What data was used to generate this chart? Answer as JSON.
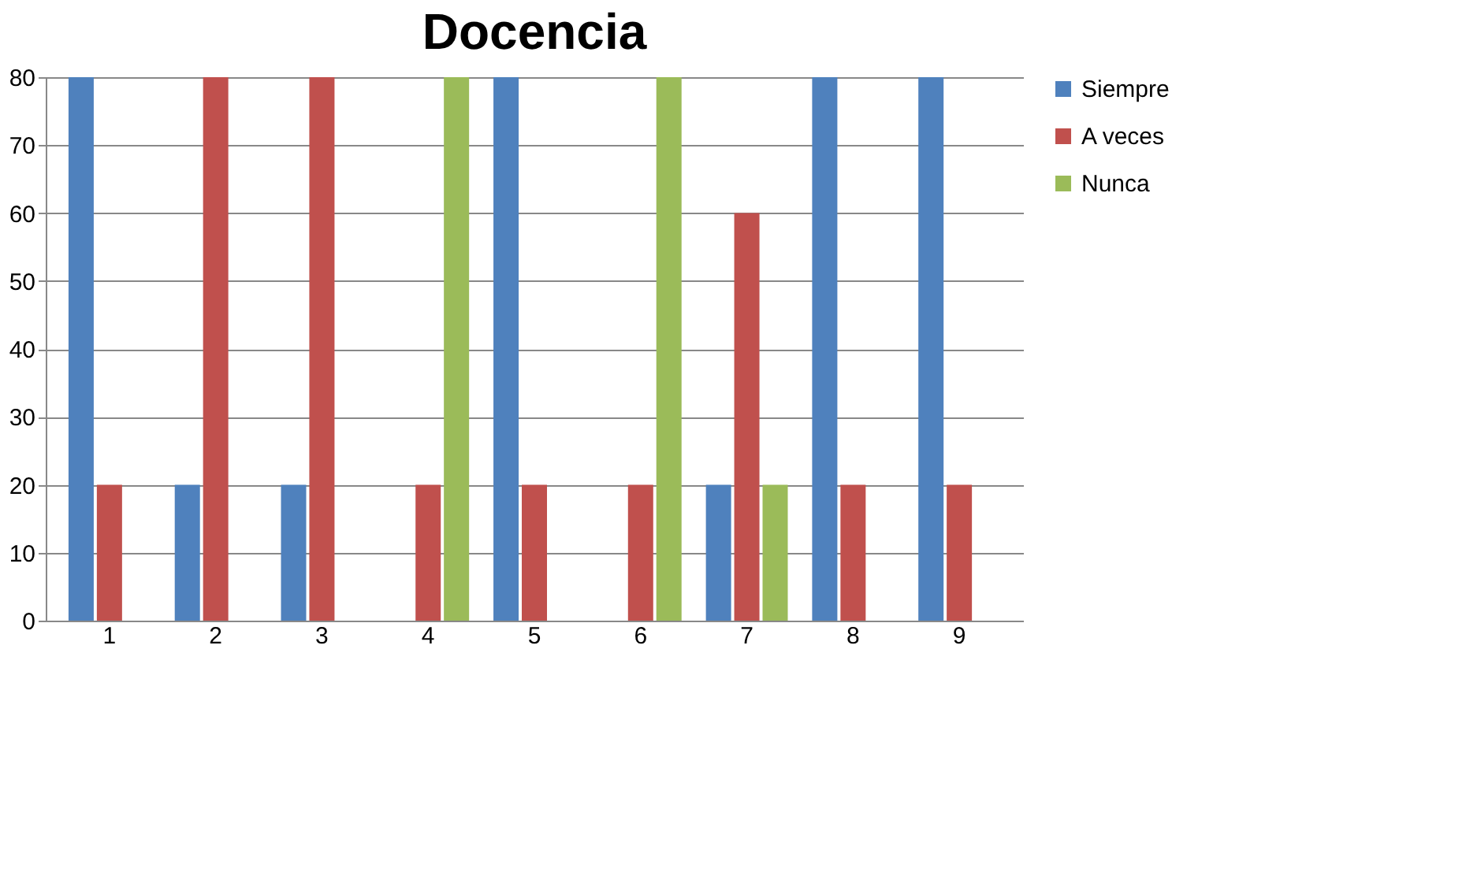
{
  "chart_data": {
    "type": "bar",
    "title": "Docencia",
    "categories": [
      "1",
      "2",
      "3",
      "4",
      "5",
      "6",
      "7",
      "8",
      "9"
    ],
    "series": [
      {
        "name": "Siempre",
        "color": "#4f81bd",
        "values": [
          80,
          20,
          20,
          0,
          80,
          0,
          20,
          80,
          80
        ]
      },
      {
        "name": "A veces",
        "color": "#c0504d",
        "values": [
          20,
          80,
          80,
          20,
          20,
          20,
          60,
          20,
          20
        ]
      },
      {
        "name": "Nunca",
        "color": "#9bbb59",
        "values": [
          0,
          0,
          0,
          80,
          0,
          80,
          20,
          0,
          0
        ]
      }
    ],
    "ylim": [
      0,
      80
    ],
    "yticks": [
      0,
      10,
      20,
      30,
      40,
      50,
      60,
      70,
      80
    ],
    "grid": "y",
    "legend": "right"
  }
}
